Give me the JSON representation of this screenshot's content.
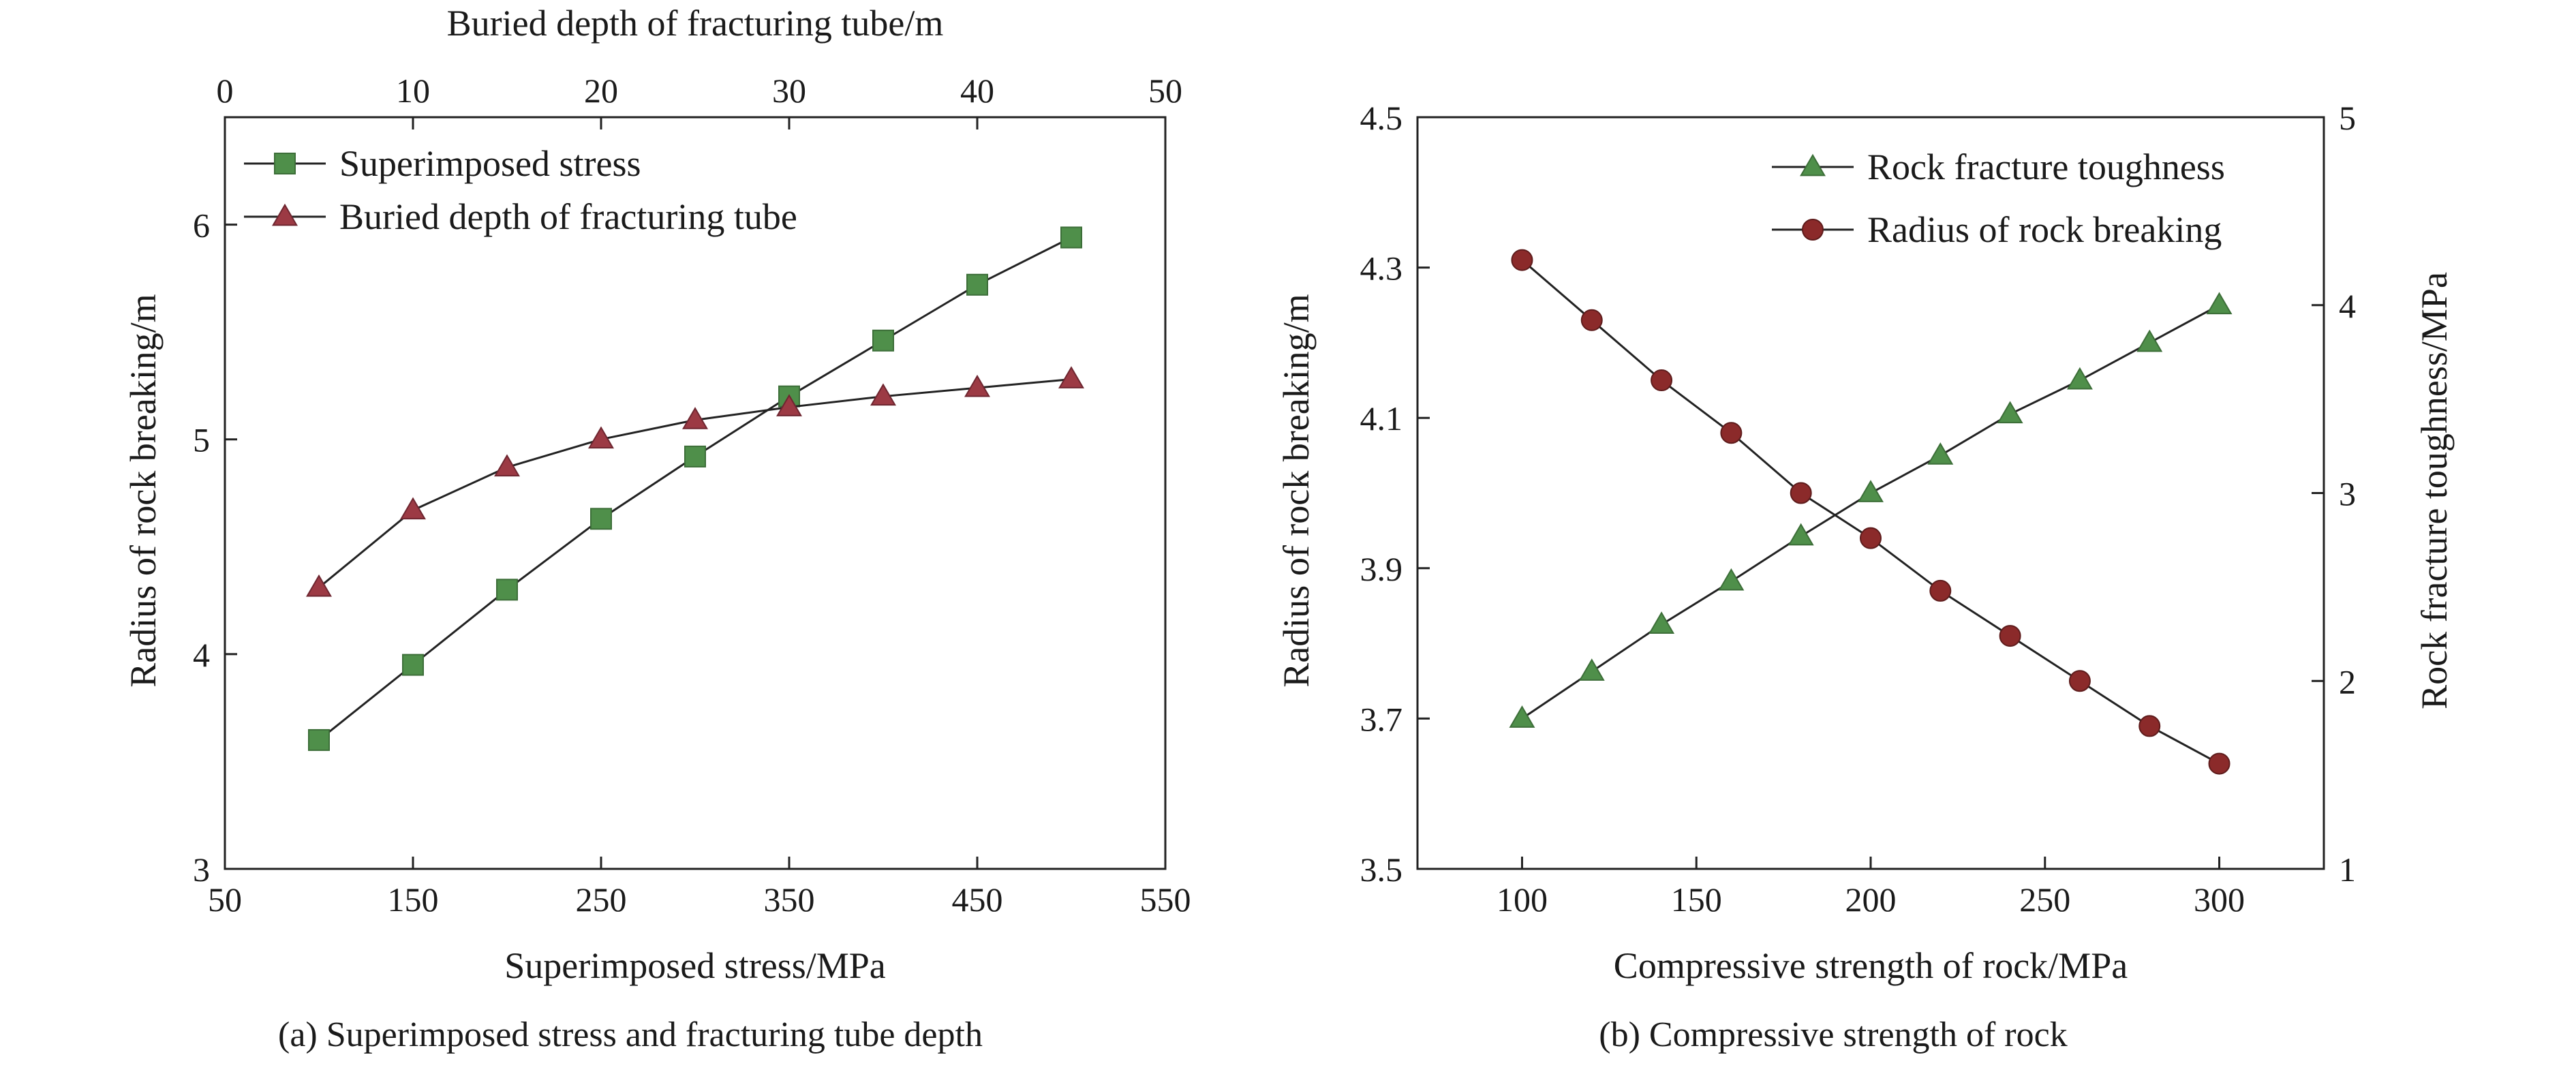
{
  "chart_data": [
    {
      "type": "line",
      "caption": "(a) Superimposed stress and fracturing tube depth",
      "xlabel": "Superimposed stress/MPa",
      "x2label": "Buried depth of fracturing tube/m",
      "ylabel": "Radius of rock breaking/m",
      "xlim": [
        50,
        550
      ],
      "x2lim": [
        0,
        50
      ],
      "ylim": [
        3,
        6.5
      ],
      "xticks": [
        "50",
        "150",
        "250",
        "350",
        "450",
        "550"
      ],
      "x2ticks": [
        "0",
        "10",
        "20",
        "30",
        "40",
        "50"
      ],
      "yticks": [
        "3",
        "4",
        "5",
        "6"
      ],
      "legend_position": "top-left",
      "grid": false,
      "series": [
        {
          "name": "Superimposed stress",
          "marker": "square",
          "color": "#4f8f4a",
          "axis": "bottom",
          "x": [
            100,
            150,
            200,
            250,
            300,
            350,
            400,
            450,
            500
          ],
          "y": [
            3.6,
            3.95,
            4.3,
            4.63,
            4.92,
            5.2,
            5.46,
            5.72,
            5.94
          ]
        },
        {
          "name": "Buried depth of fracturing tube",
          "marker": "triangle",
          "color": "#9c3a44",
          "axis": "top",
          "x": [
            5,
            10,
            15,
            20,
            25,
            30,
            35,
            40,
            45
          ],
          "y": [
            4.31,
            4.67,
            4.87,
            5.0,
            5.09,
            5.15,
            5.2,
            5.24,
            5.28
          ]
        }
      ]
    },
    {
      "type": "line",
      "caption": "(b) Compressive strength of rock",
      "xlabel": "Compressive strength of rock/MPa",
      "ylabel": "Radius of rock breaking/m",
      "y2label": "Rock fracture toughness/MPa",
      "xlim": [
        70,
        330
      ],
      "ylim": [
        3.5,
        4.5
      ],
      "y2lim": [
        1,
        5
      ],
      "xticks": [
        "100",
        "150",
        "200",
        "250",
        "300"
      ],
      "yticks": [
        "3.5",
        "3.7",
        "3.9",
        "4.1",
        "4.3",
        "4.5"
      ],
      "y2ticks": [
        "1",
        "2",
        "3",
        "4",
        "5"
      ],
      "legend_position": "top-right",
      "grid": false,
      "series": [
        {
          "name": "Rock fracture toughness",
          "marker": "triangle",
          "color": "#4f8f4a",
          "axis": "right",
          "x": [
            100,
            120,
            140,
            160,
            180,
            200,
            220,
            240,
            260,
            280,
            300
          ],
          "y": [
            1.8,
            2.05,
            2.3,
            2.53,
            2.77,
            3.0,
            3.2,
            3.42,
            3.6,
            3.8,
            4.0
          ]
        },
        {
          "name": "Radius of rock breaking",
          "marker": "circle",
          "color": "#8b2a2a",
          "axis": "left",
          "x": [
            100,
            120,
            140,
            160,
            180,
            200,
            220,
            240,
            260,
            280,
            300
          ],
          "y": [
            4.31,
            4.23,
            4.15,
            4.08,
            4.0,
            3.94,
            3.87,
            3.81,
            3.75,
            3.69,
            3.64
          ]
        }
      ]
    }
  ]
}
